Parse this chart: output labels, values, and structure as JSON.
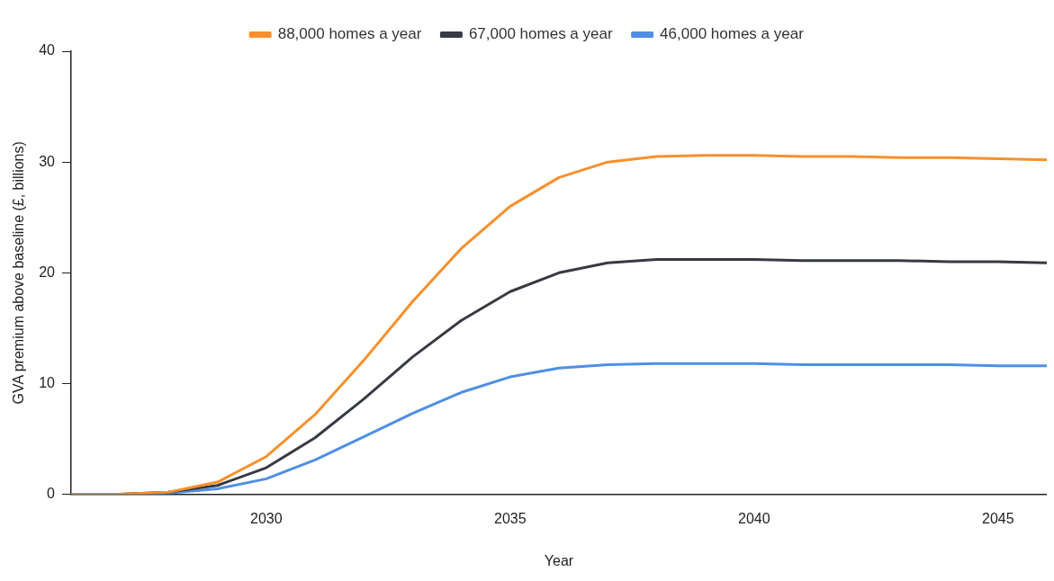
{
  "chart_data": {
    "type": "line",
    "xlabel": "Year",
    "ylabel": "GVA premium above baseline (£, billions)",
    "x": [
      2026,
      2027,
      2028,
      2029,
      2030,
      2031,
      2032,
      2033,
      2034,
      2035,
      2036,
      2037,
      2038,
      2039,
      2040,
      2041,
      2042,
      2043,
      2044,
      2045,
      2046
    ],
    "series": [
      {
        "name": "88,000 homes a year",
        "color": "#f7902c",
        "values": [
          0,
          0,
          0.2,
          1.1,
          3.4,
          7.2,
          12.1,
          17.4,
          22.2,
          26,
          28.6,
          30,
          30.5,
          30.6,
          30.6,
          30.5,
          30.5,
          30.4,
          30.4,
          30.3,
          30.2
        ]
      },
      {
        "name": "67,000 homes a year",
        "color": "#373a44",
        "values": [
          0,
          0,
          0.2,
          0.8,
          2.4,
          5.1,
          8.6,
          12.4,
          15.7,
          18.3,
          20,
          20.9,
          21.2,
          21.2,
          21.2,
          21.1,
          21.1,
          21.1,
          21,
          21,
          20.9
        ]
      },
      {
        "name": "46,000 homes a year",
        "color": "#4f8fe6",
        "values": [
          0,
          0,
          0.1,
          0.5,
          1.4,
          3.1,
          5.2,
          7.3,
          9.2,
          10.6,
          11.4,
          11.7,
          11.8,
          11.8,
          11.8,
          11.7,
          11.7,
          11.7,
          11.7,
          11.6,
          11.6
        ]
      }
    ],
    "xlim": [
      2026,
      2046
    ],
    "xticks": [
      2030,
      2035,
      2040,
      2045
    ],
    "ylim": [
      0,
      40
    ],
    "yticks": [
      0,
      10,
      20,
      30,
      40
    ],
    "grid": false,
    "legend": "top",
    "marker": "none",
    "line_style": "solid"
  }
}
